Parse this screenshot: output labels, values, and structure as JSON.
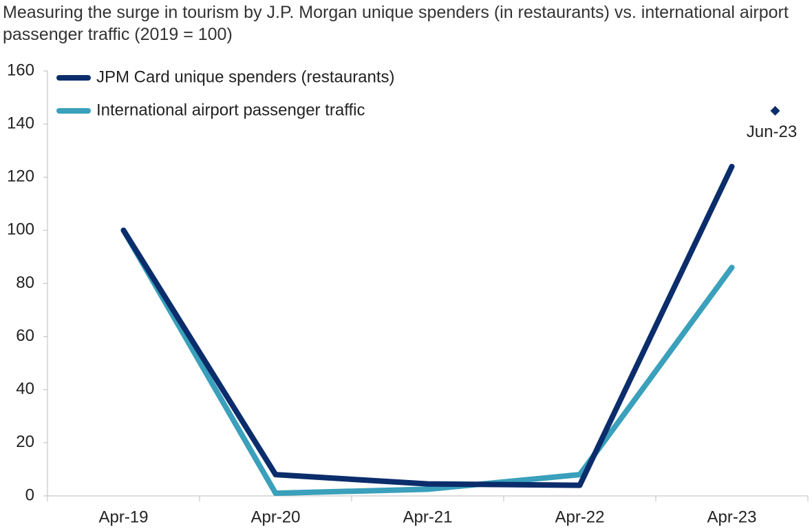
{
  "chart_data": {
    "type": "line",
    "title": "Measuring the surge in tourism by J.P. Morgan unique spenders (in restaurants) vs. international airport passenger traffic (2019 = 100)",
    "categories": [
      "Apr-19",
      "Apr-20",
      "Apr-21",
      "Apr-22",
      "Apr-23"
    ],
    "series": [
      {
        "name": "JPM Card unique spenders (restaurants)",
        "color": "#0b2d6b",
        "values": [
          100,
          8,
          4.5,
          4,
          124
        ]
      },
      {
        "name": "International airport passenger traffic",
        "color": "#3aa0bb",
        "values": [
          100,
          1,
          2.5,
          8,
          86
        ]
      }
    ],
    "points": [
      {
        "label": "Jun-23",
        "value": 145,
        "color": "#0b2d6b"
      }
    ],
    "ylim": [
      0,
      160
    ],
    "yticks": [
      0,
      20,
      40,
      60,
      80,
      100,
      120,
      140,
      160
    ],
    "legend": "top-left",
    "grid": false
  }
}
